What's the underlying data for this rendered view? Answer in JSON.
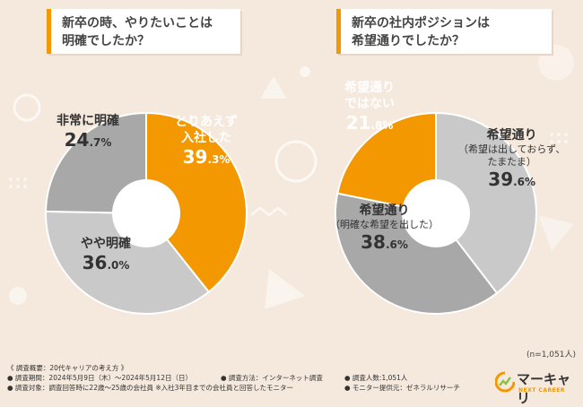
{
  "questions": {
    "q1": [
      "新卒の時、やりたいことは",
      "明確でしたか？"
    ],
    "q2": [
      "新卒の社内ポジションは",
      "希望通りでしたか？"
    ]
  },
  "chart_data": [
    {
      "type": "pie",
      "title": "新卒の時、やりたいことは明確でしたか？",
      "slices": [
        {
          "name": "とりあえず入社した",
          "lines": [
            "とりあえず",
            "入社した"
          ],
          "sub": [],
          "value": 39.3,
          "int": "39",
          "dec": ".3%",
          "color": "#f39800",
          "text": "white"
        },
        {
          "name": "やや明確",
          "lines": [
            "やや明確"
          ],
          "sub": [],
          "value": 36.0,
          "int": "36",
          "dec": ".0%",
          "color": "#c9c9c9",
          "text": "dark"
        },
        {
          "name": "非常に明確",
          "lines": [
            "非常に明確"
          ],
          "sub": [],
          "value": 24.7,
          "int": "24",
          "dec": ".7%",
          "color": "#a8a8a8",
          "text": "dark"
        }
      ]
    },
    {
      "type": "pie",
      "title": "新卒の社内ポジションは希望通りでしたか？",
      "slices": [
        {
          "name": "希望通り（希望は出しておらず、たまたま）",
          "lines": [
            "希望通り"
          ],
          "sub": [
            "（希望は出しておらず、",
            "たまたま）"
          ],
          "value": 39.6,
          "int": "39",
          "dec": ".6%",
          "color": "#c9c9c9",
          "text": "dark"
        },
        {
          "name": "希望通り（明確な希望を出した）",
          "lines": [
            "希望通り"
          ],
          "sub": [
            "（明確な希望を出した）"
          ],
          "value": 38.6,
          "int": "38",
          "dec": ".6%",
          "color": "#a8a8a8",
          "text": "dark"
        },
        {
          "name": "希望通りではない",
          "lines": [
            "希望通り",
            "ではない"
          ],
          "sub": [],
          "value": 21.8,
          "int": "21",
          "dec": ".8%",
          "color": "#f39800",
          "text": "white"
        }
      ]
    }
  ],
  "n_note": "(n=1,051人)",
  "footer": {
    "title": "《 調査概要：20代キャリアの考え方 》",
    "row1": [
      "● 調査期間：2024年5月9日（木）～2024年5月12日（日）",
      "● 調査方法：インターネット調査",
      "● 調査人数:1,051人"
    ],
    "row2": [
      "● 調査対象：調査回答時に22歳～25歳の会社員 ※入社3年目までの会社員と回答したモニター",
      "● モニター提供元：ゼネラルリサーチ"
    ]
  },
  "brand": {
    "name": "マーキャリ",
    "tagline": "NEXT CAREER"
  }
}
